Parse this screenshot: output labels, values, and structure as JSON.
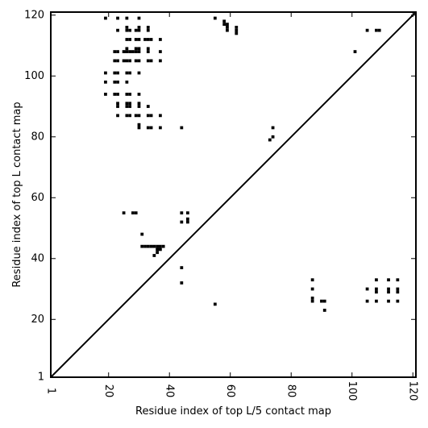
{
  "chart_data": {
    "type": "heatmap",
    "xlabel": "Residue index of top L/5 contact map",
    "ylabel": "Residue index of top L contact map",
    "xlim": [
      1,
      121
    ],
    "ylim": [
      1,
      121
    ],
    "x_ticks": [
      1,
      20,
      40,
      60,
      80,
      100,
      120
    ],
    "y_ticks": [
      1,
      20,
      40,
      60,
      80,
      100,
      120
    ],
    "x_tick_labels": [
      "1",
      "20",
      "40",
      "60",
      "80",
      "100",
      "120"
    ],
    "y_tick_labels": [
      "1",
      "20",
      "40",
      "60",
      "80",
      "100",
      "120"
    ],
    "diagonal_line": true,
    "grid": false,
    "cell_color": "#000000",
    "contacts_top_l": [
      [
        19,
        119
      ],
      [
        23,
        119
      ],
      [
        26,
        119
      ],
      [
        30,
        119
      ],
      [
        26,
        116
      ],
      [
        30,
        116
      ],
      [
        33,
        116
      ],
      [
        23,
        115
      ],
      [
        26,
        115
      ],
      [
        27,
        115
      ],
      [
        29,
        115
      ],
      [
        30,
        115
      ],
      [
        33,
        115
      ],
      [
        26,
        112
      ],
      [
        27,
        112
      ],
      [
        29,
        112
      ],
      [
        30,
        112
      ],
      [
        32,
        112
      ],
      [
        33,
        112
      ],
      [
        34,
        112
      ],
      [
        37,
        112
      ],
      [
        26,
        109
      ],
      [
        29,
        109
      ],
      [
        30,
        109
      ],
      [
        33,
        109
      ],
      [
        22,
        108
      ],
      [
        23,
        108
      ],
      [
        25,
        108
      ],
      [
        26,
        108
      ],
      [
        27,
        108
      ],
      [
        28,
        108
      ],
      [
        29,
        108
      ],
      [
        30,
        108
      ],
      [
        33,
        108
      ],
      [
        37,
        108
      ],
      [
        22,
        105
      ],
      [
        23,
        105
      ],
      [
        25,
        105
      ],
      [
        26,
        105
      ],
      [
        27,
        105
      ],
      [
        29,
        105
      ],
      [
        30,
        105
      ],
      [
        33,
        105
      ],
      [
        34,
        105
      ],
      [
        37,
        105
      ],
      [
        19,
        101
      ],
      [
        22,
        101
      ],
      [
        23,
        101
      ],
      [
        26,
        101
      ],
      [
        27,
        101
      ],
      [
        30,
        101
      ],
      [
        19,
        98
      ],
      [
        22,
        98
      ],
      [
        23,
        98
      ],
      [
        26,
        98
      ],
      [
        19,
        94
      ],
      [
        22,
        94
      ],
      [
        23,
        94
      ],
      [
        26,
        94
      ],
      [
        27,
        94
      ],
      [
        30,
        94
      ],
      [
        23,
        91
      ],
      [
        26,
        91
      ],
      [
        27,
        91
      ],
      [
        30,
        91
      ],
      [
        23,
        90
      ],
      [
        26,
        90
      ],
      [
        27,
        90
      ],
      [
        30,
        90
      ],
      [
        33,
        90
      ],
      [
        23,
        87
      ],
      [
        26,
        87
      ],
      [
        27,
        87
      ],
      [
        29,
        87
      ],
      [
        30,
        87
      ],
      [
        33,
        87
      ],
      [
        34,
        87
      ],
      [
        37,
        87
      ],
      [
        30,
        84
      ],
      [
        30,
        83
      ],
      [
        33,
        83
      ],
      [
        34,
        83
      ],
      [
        37,
        83
      ],
      [
        44,
        83
      ],
      [
        55,
        119
      ],
      [
        58,
        118
      ],
      [
        58,
        117
      ],
      [
        59,
        117
      ],
      [
        59,
        116
      ],
      [
        59,
        115
      ],
      [
        62,
        116
      ],
      [
        62,
        115
      ],
      [
        62,
        114
      ],
      [
        105,
        115
      ],
      [
        108,
        115
      ],
      [
        109,
        115
      ],
      [
        101,
        108
      ],
      [
        74,
        83
      ],
      [
        74,
        80
      ],
      [
        73,
        79
      ],
      [
        25,
        55
      ],
      [
        28,
        55
      ],
      [
        29,
        55
      ],
      [
        44,
        55
      ],
      [
        46,
        55
      ],
      [
        44,
        52
      ],
      [
        46,
        53
      ],
      [
        46,
        52
      ],
      [
        31,
        48
      ],
      [
        31,
        44
      ],
      [
        32,
        44
      ],
      [
        33,
        44
      ],
      [
        34,
        44
      ],
      [
        35,
        44
      ],
      [
        36,
        44
      ],
      [
        37,
        44
      ],
      [
        38,
        44
      ],
      [
        36,
        43
      ],
      [
        37,
        43
      ],
      [
        36,
        42
      ],
      [
        35,
        41
      ],
      [
        44,
        37
      ],
      [
        44,
        32
      ],
      [
        55,
        25
      ]
    ],
    "contacts_top_l5": [
      [
        87,
        33
      ],
      [
        87,
        30
      ],
      [
        87,
        27
      ],
      [
        87,
        26
      ],
      [
        90,
        26
      ],
      [
        91,
        26
      ],
      [
        91,
        23
      ],
      [
        105,
        30
      ],
      [
        105,
        26
      ],
      [
        108,
        33
      ],
      [
        108,
        30
      ],
      [
        108,
        29
      ],
      [
        108,
        26
      ],
      [
        112,
        33
      ],
      [
        112,
        30
      ],
      [
        112,
        29
      ],
      [
        112,
        26
      ],
      [
        115,
        33
      ],
      [
        115,
        30
      ],
      [
        115,
        29
      ],
      [
        115,
        26
      ]
    ]
  }
}
